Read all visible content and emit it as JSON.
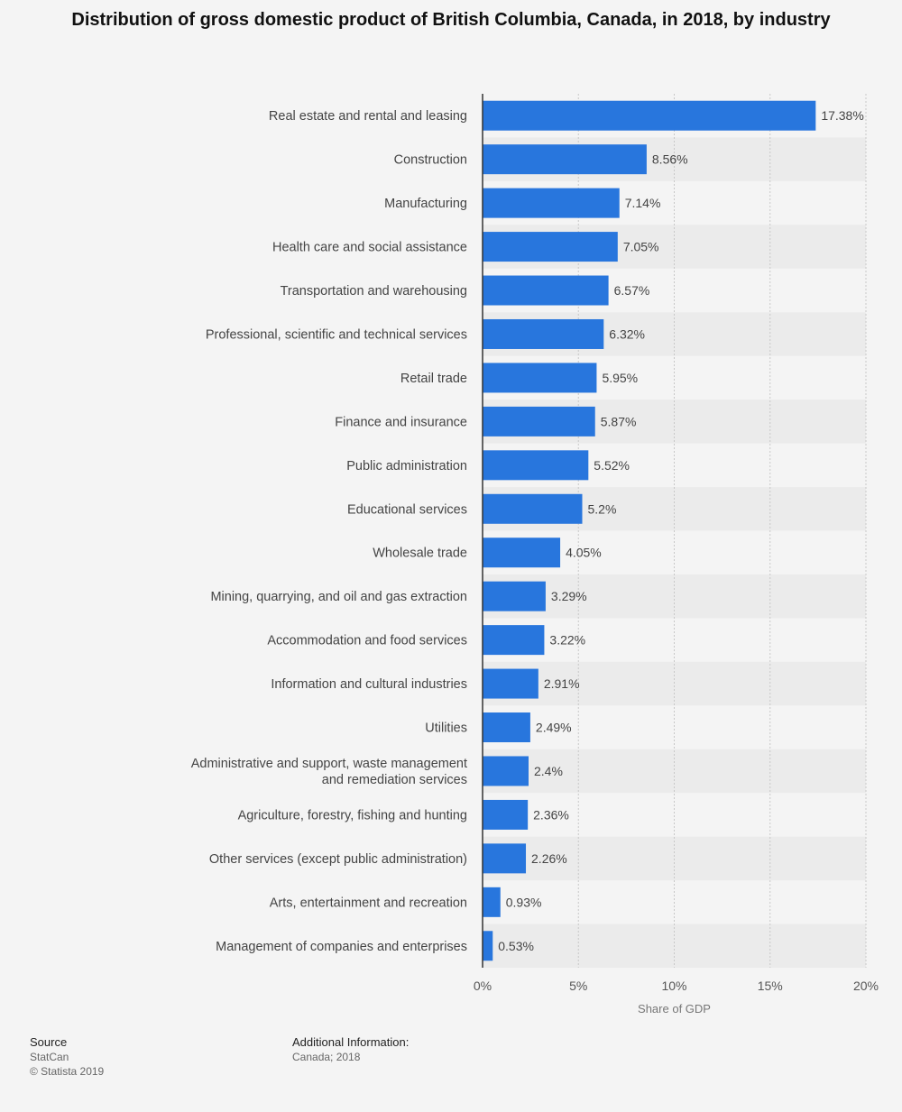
{
  "chart_data": {
    "type": "bar",
    "orientation": "horizontal",
    "title": "Distribution of gross domestic product of British Columbia, Canada, in 2018, by industry",
    "xlabel": "Share of GDP",
    "ylabel": "",
    "xlim": [
      0,
      20
    ],
    "x_ticks": [
      "0%",
      "5%",
      "10%",
      "15%",
      "20%"
    ],
    "grid": true,
    "categories": [
      "Real estate and rental and leasing",
      "Construction",
      "Manufacturing",
      "Health care and social assistance",
      "Transportation and warehousing",
      "Professional, scientific and technical services",
      "Retail trade",
      "Finance and insurance",
      "Public administration",
      "Educational services",
      "Wholesale trade",
      "Mining, quarrying, and oil and gas extraction",
      "Accommodation and food services",
      "Information and cultural industries",
      "Utilities",
      "Administrative and support, waste management and remediation services",
      "Agriculture, forestry, fishing and hunting",
      "Other services (except public administration)",
      "Arts, entertainment and recreation",
      "Management of companies and enterprises"
    ],
    "category_lines": [
      [
        "Real estate and rental and leasing"
      ],
      [
        "Construction"
      ],
      [
        "Manufacturing"
      ],
      [
        "Health care and social assistance"
      ],
      [
        "Transportation and warehousing"
      ],
      [
        "Professional, scientific and technical services"
      ],
      [
        "Retail trade"
      ],
      [
        "Finance and insurance"
      ],
      [
        "Public administration"
      ],
      [
        "Educational services"
      ],
      [
        "Wholesale trade"
      ],
      [
        "Mining, quarrying, and oil and gas extraction"
      ],
      [
        "Accommodation and food services"
      ],
      [
        "Information and cultural industries"
      ],
      [
        "Utilities"
      ],
      [
        "Administrative and support, waste management",
        "and remediation services"
      ],
      [
        "Agriculture, forestry, fishing and hunting"
      ],
      [
        "Other services (except public administration)"
      ],
      [
        "Arts, entertainment and recreation"
      ],
      [
        "Management of companies and enterprises"
      ]
    ],
    "values": [
      17.38,
      8.56,
      7.14,
      7.05,
      6.57,
      6.32,
      5.95,
      5.87,
      5.52,
      5.2,
      4.05,
      3.29,
      3.22,
      2.91,
      2.49,
      2.4,
      2.36,
      2.26,
      0.93,
      0.53
    ],
    "data_labels": [
      "17.38%",
      "8.56%",
      "7.14%",
      "7.05%",
      "6.57%",
      "6.32%",
      "5.95%",
      "5.87%",
      "5.52%",
      "5.2%",
      "4.05%",
      "3.29%",
      "3.22%",
      "2.91%",
      "2.49%",
      "2.4%",
      "2.36%",
      "2.26%",
      "0.93%",
      "0.53%"
    ],
    "colors": {
      "bar": "#2876dd",
      "band": "#ebebeb",
      "grid": "#c8c8c8",
      "axis": "#333333",
      "label": "#444444",
      "tick": "#555555"
    }
  },
  "footer": {
    "source_heading": "Source",
    "source_name": "StatCan",
    "copyright": "© Statista 2019",
    "info_heading": "Additional Information:",
    "info_text": "Canada; 2018"
  }
}
